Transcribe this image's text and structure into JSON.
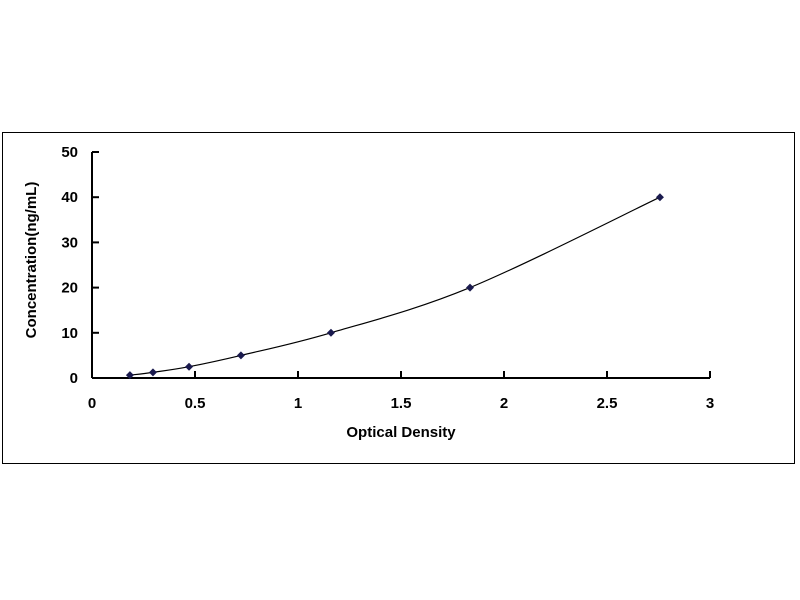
{
  "chart_data": {
    "type": "scatter",
    "title": "",
    "xlabel": "Optical Density",
    "ylabel": "Concentration(ng/mL)",
    "xlim": [
      0,
      3
    ],
    "ylim": [
      0,
      50
    ],
    "xticks": [
      "0",
      "0.5",
      "1",
      "1.5",
      "2",
      "2.5",
      "3"
    ],
    "yticks": [
      "0",
      "10",
      "20",
      "30",
      "40",
      "50"
    ],
    "grid": false,
    "trendline": "smooth curve",
    "marker": "diamond",
    "color": "#1a1a4e",
    "x": [
      0.184,
      0.296,
      0.471,
      0.723,
      1.16,
      1.835,
      2.757
    ],
    "y": [
      0.625,
      1.25,
      2.5,
      5,
      10,
      20,
      40
    ]
  }
}
